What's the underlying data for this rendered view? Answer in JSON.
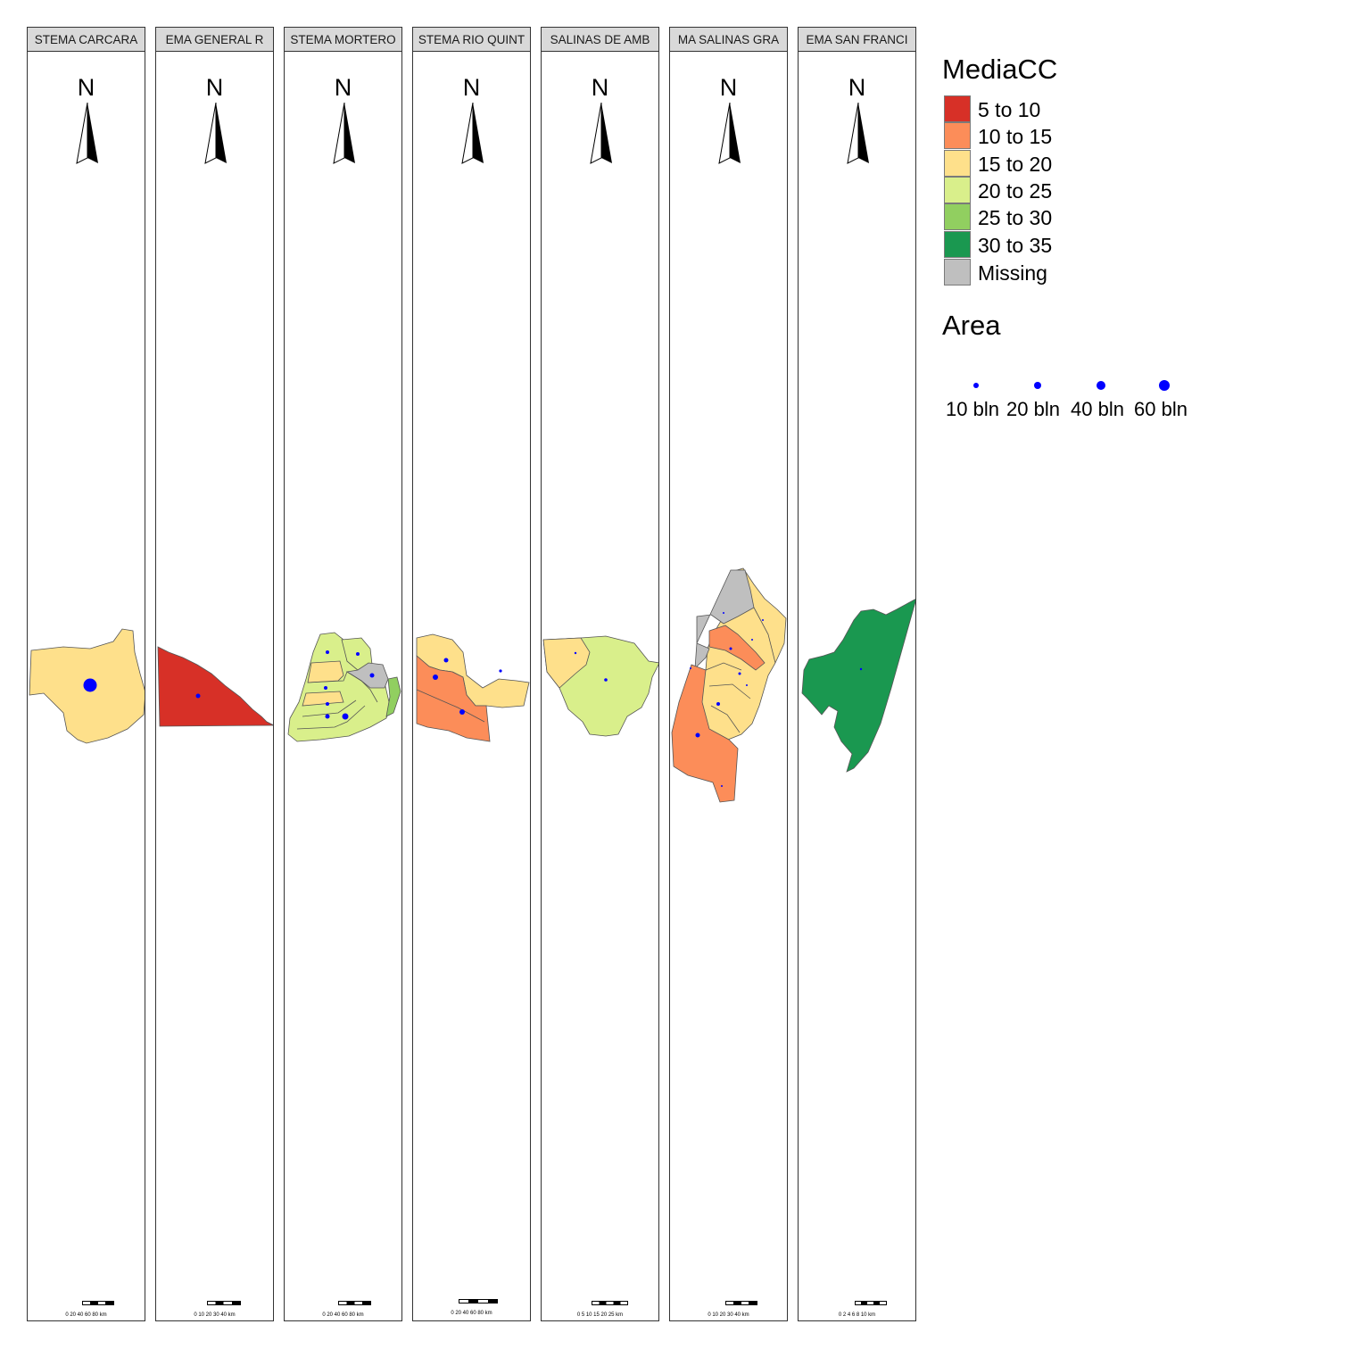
{
  "panels": [
    {
      "title": "STEMA CARCARA",
      "scale_text": "0  20  40  60  80 km"
    },
    {
      "title": "EMA GENERAL R",
      "scale_text": "0  10  20 30 40 km"
    },
    {
      "title": "STEMA MORTERO",
      "scale_text": "0  20  40  60 80 km"
    },
    {
      "title": "STEMA RIO QUINT",
      "scale_text": "0  20  40  60  80 km"
    },
    {
      "title": "SALINAS DE AMB",
      "scale_text": "0   5  10  15  20  25 km"
    },
    {
      "title": "MA SALINAS GRA",
      "scale_text": "0   10  20  30  40 km"
    },
    {
      "title": "EMA SAN FRANCI",
      "scale_text": "0   2   4   6   8  10 km"
    }
  ],
  "north_arrow_label": "N",
  "legend": {
    "fill_title": "MediaCC",
    "fill_items": [
      {
        "label": "5 to 10",
        "color": "#d73027"
      },
      {
        "label": "10 to 15",
        "color": "#fc8d59"
      },
      {
        "label": "15 to 20",
        "color": "#fee08b"
      },
      {
        "label": "20 to 25",
        "color": "#d9ef8b"
      },
      {
        "label": "25 to 30",
        "color": "#91cf60"
      },
      {
        "label": "30 to 35",
        "color": "#1a9850"
      },
      {
        "label": "Missing",
        "color": "#bfbfbf"
      }
    ],
    "size_title": "Area",
    "size_items": [
      {
        "label": "10 bln",
        "value": 10
      },
      {
        "label": "20 bln",
        "value": 20
      },
      {
        "label": "40 bln",
        "value": 40
      },
      {
        "label": "60 bln",
        "value": 60
      }
    ]
  },
  "colors": {
    "bubble": "#0000ff",
    "border": "#555555"
  }
}
